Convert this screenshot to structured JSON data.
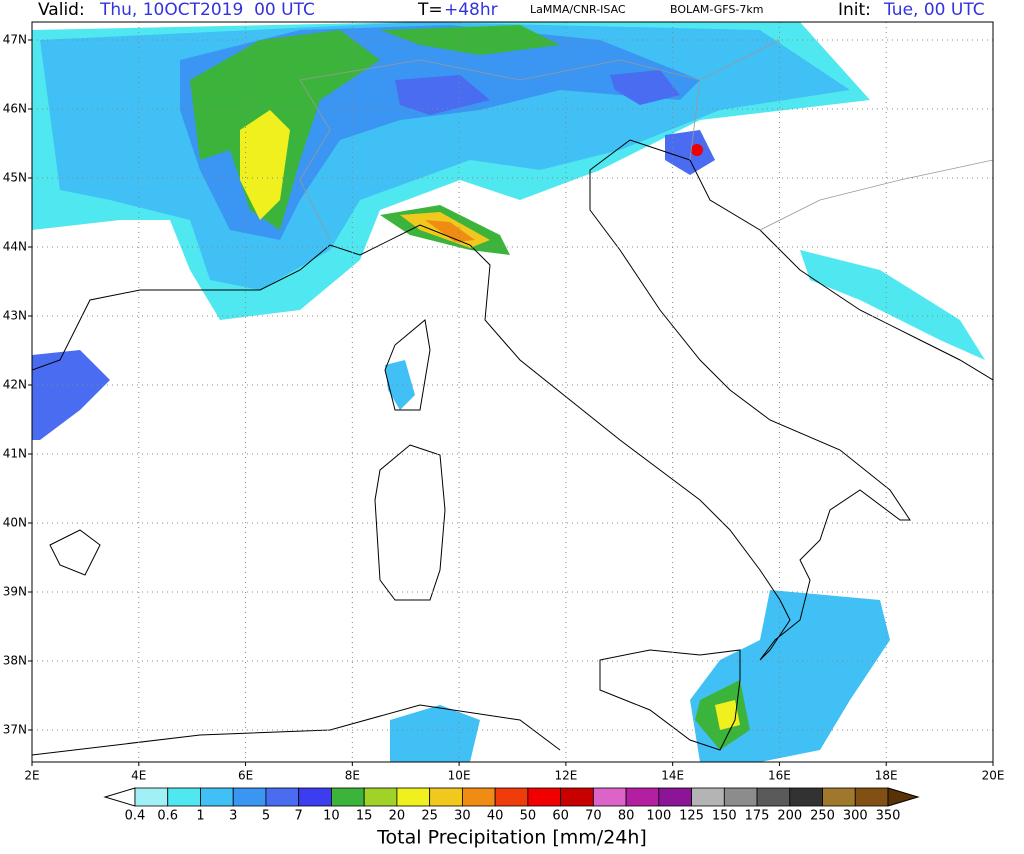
{
  "header": {
    "valid_label": "Valid:",
    "valid_value": "Thu, 10OCT2019  00 UTC",
    "t_label": "T=",
    "t_value": "+48hr",
    "source": "LaMMA/CNR-ISAC",
    "model": "BOLAM-GFS-7km",
    "init_label": "Init:",
    "init_value": "Tue, 00 UTC"
  },
  "map": {
    "lat_labels": [
      "47N",
      "46N",
      "45N",
      "44N",
      "43N",
      "42N",
      "41N",
      "40N",
      "39N",
      "38N",
      "37N"
    ],
    "lon_labels": [
      "2E",
      "4E",
      "6E",
      "8E",
      "10E",
      "12E",
      "14E",
      "16E",
      "18E",
      "20E"
    ]
  },
  "colorbar": {
    "title": "Total Precipitation [mm/24h]",
    "levels": [
      0.4,
      0.6,
      1,
      3,
      5,
      7,
      10,
      15,
      20,
      25,
      30,
      40,
      50,
      60,
      70,
      80,
      100,
      125,
      150,
      175,
      200,
      250,
      300,
      350
    ],
    "colors": [
      "#ffffff",
      "#a0f0f5",
      "#50e8f0",
      "#40c0f5",
      "#3a96f2",
      "#4a6cf0",
      "#3c3cf0",
      "#3cb43c",
      "#a0d228",
      "#f0f01e",
      "#f0c81e",
      "#f08c14",
      "#f03c0a",
      "#f00000",
      "#c80000",
      "#dc64c8",
      "#b41ea0",
      "#8c1496",
      "#b4b4b4",
      "#8c8c8c",
      "#5a5a5a",
      "#323232",
      "#a0782d",
      "#825014",
      "#5a3208"
    ]
  }
}
